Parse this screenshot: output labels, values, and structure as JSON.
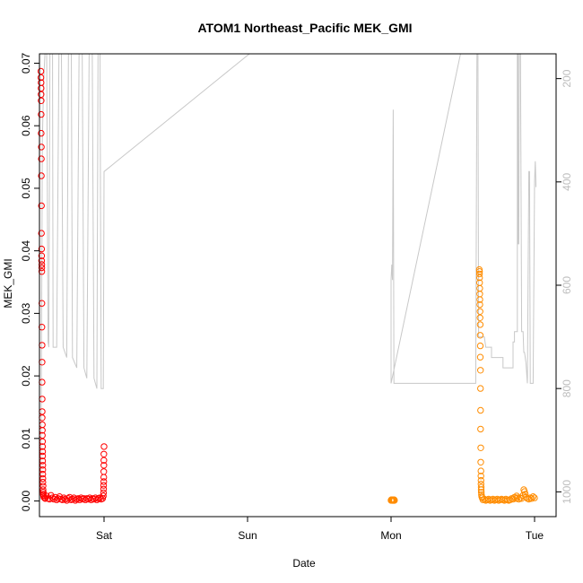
{
  "chart_data": {
    "type": "scatter",
    "title": "ATOM1 Northeast_Pacific MEK_GMI",
    "xlabel": "Date",
    "ylabel": "MEK_GMI",
    "x_ticks": [
      "Sat",
      "Sun",
      "Mon",
      "Tue"
    ],
    "x_tick_days": [
      1,
      2,
      3,
      4
    ],
    "xlim": [
      0.55,
      4.15
    ],
    "ylim": [
      -0.0025,
      0.0715
    ],
    "y_ticks": [
      "0.00",
      "0.01",
      "0.02",
      "0.03",
      "0.04",
      "0.05",
      "0.06",
      "0.07"
    ],
    "y_tick_values": [
      0,
      0.01,
      0.02,
      0.03,
      0.04,
      0.05,
      0.06,
      0.07
    ],
    "y2_ticks": [
      "200",
      "400",
      "600",
      "800",
      "1000"
    ],
    "y2_tick_values": [
      200,
      400,
      600,
      800,
      1000
    ],
    "y2lim": [
      1048,
      152
    ],
    "y2_reversed": true,
    "grid": false,
    "colors": {
      "series1": "#ff0000",
      "series2": "#ff8c00",
      "pressure": "#c8c8c8"
    },
    "series": [
      {
        "color": "#ff0000",
        "marker": "open-circle",
        "points": [
          [
            0.56,
            0.0687
          ],
          [
            0.56,
            0.0677
          ],
          [
            0.561,
            0.0669
          ],
          [
            0.561,
            0.066
          ],
          [
            0.561,
            0.065
          ],
          [
            0.562,
            0.064
          ],
          [
            0.562,
            0.0618
          ],
          [
            0.562,
            0.0588
          ],
          [
            0.563,
            0.0566
          ],
          [
            0.563,
            0.0547
          ],
          [
            0.563,
            0.052
          ],
          [
            0.564,
            0.0472
          ],
          [
            0.564,
            0.0428
          ],
          [
            0.565,
            0.0403
          ],
          [
            0.565,
            0.0392
          ],
          [
            0.565,
            0.0384
          ],
          [
            0.566,
            0.0378
          ],
          [
            0.566,
            0.0373
          ],
          [
            0.566,
            0.0367
          ],
          [
            0.567,
            0.0316
          ],
          [
            0.567,
            0.0278
          ],
          [
            0.568,
            0.0249
          ],
          [
            0.568,
            0.0222
          ],
          [
            0.568,
            0.019
          ],
          [
            0.569,
            0.0163
          ],
          [
            0.569,
            0.0143
          ],
          [
            0.569,
            0.0133
          ],
          [
            0.57,
            0.0122
          ],
          [
            0.57,
            0.0113
          ],
          [
            0.57,
            0.0105
          ],
          [
            0.571,
            0.0095
          ],
          [
            0.571,
            0.0087
          ],
          [
            0.572,
            0.0079
          ],
          [
            0.572,
            0.0072
          ],
          [
            0.572,
            0.0064
          ],
          [
            0.573,
            0.0057
          ],
          [
            0.573,
            0.005
          ],
          [
            0.573,
            0.0043
          ],
          [
            0.574,
            0.0036
          ],
          [
            0.574,
            0.003
          ],
          [
            0.575,
            0.0024
          ],
          [
            0.575,
            0.0018
          ],
          [
            0.576,
            0.0014
          ],
          [
            0.577,
            0.0011
          ],
          [
            0.578,
            0.0009
          ],
          [
            0.58,
            0.0007
          ],
          [
            0.585,
            0.0005
          ],
          [
            0.59,
            0.0004
          ],
          [
            0.6,
            0.0008
          ],
          [
            0.61,
            0.0004
          ],
          [
            0.62,
            0.0003
          ],
          [
            0.63,
            0.0009
          ],
          [
            0.64,
            0.0005
          ],
          [
            0.65,
            0.0003
          ],
          [
            0.66,
            0.0006
          ],
          [
            0.67,
            0.0002
          ],
          [
            0.68,
            0.0004
          ],
          [
            0.69,
            0.0007
          ],
          [
            0.7,
            0.0003
          ],
          [
            0.71,
            0.0002
          ],
          [
            0.72,
            0.0005
          ],
          [
            0.73,
            0.0003
          ],
          [
            0.74,
            0.0001
          ],
          [
            0.75,
            0.0004
          ],
          [
            0.76,
            0.0006
          ],
          [
            0.77,
            0.0002
          ],
          [
            0.78,
            0.0003
          ],
          [
            0.79,
            0.0005
          ],
          [
            0.8,
            0.0001
          ],
          [
            0.81,
            0.0003
          ],
          [
            0.82,
            0.0004
          ],
          [
            0.83,
            0.0002
          ],
          [
            0.84,
            0.0005
          ],
          [
            0.85,
            0.0003
          ],
          [
            0.86,
            0.0004
          ],
          [
            0.87,
            0.0002
          ],
          [
            0.88,
            0.0004
          ],
          [
            0.89,
            0.0003
          ],
          [
            0.9,
            0.0005
          ],
          [
            0.91,
            0.0002
          ],
          [
            0.92,
            0.0004
          ],
          [
            0.93,
            0.0003
          ],
          [
            0.94,
            0.0005
          ],
          [
            0.95,
            0.0002
          ],
          [
            0.96,
            0.0004
          ],
          [
            0.97,
            0.0005
          ],
          [
            0.98,
            0.0003
          ],
          [
            0.99,
            0.0004
          ],
          [
            0.995,
            0.0008
          ],
          [
            0.996,
            0.0013
          ],
          [
            0.997,
            0.0019
          ],
          [
            0.997,
            0.0025
          ],
          [
            0.998,
            0.0031
          ],
          [
            0.998,
            0.0038
          ],
          [
            0.998,
            0.0047
          ],
          [
            0.999,
            0.0057
          ],
          [
            0.999,
            0.0065
          ],
          [
            0.999,
            0.0075
          ],
          [
            1.0,
            0.0087
          ]
        ]
      },
      {
        "color": "#ff8c00",
        "marker": "open-circle",
        "points": [
          [
            3.0,
            0.0001
          ],
          [
            3.002,
            0.0002
          ],
          [
            3.004,
            0.0002
          ],
          [
            3.006,
            0.0001
          ],
          [
            3.008,
            0.0002
          ],
          [
            3.01,
            0.0001
          ],
          [
            3.012,
            0.0002
          ],
          [
            3.014,
            0.0001
          ],
          [
            3.016,
            0.0002
          ],
          [
            3.018,
            0.0001
          ],
          [
            3.02,
            0.0001
          ],
          [
            3.022,
            0.0002
          ],
          [
            3.024,
            0.0001
          ],
          [
            3.615,
            0.037
          ],
          [
            3.616,
            0.0367
          ],
          [
            3.616,
            0.0363
          ],
          [
            3.617,
            0.0357
          ],
          [
            3.617,
            0.0349
          ],
          [
            3.618,
            0.034
          ],
          [
            3.618,
            0.0331
          ],
          [
            3.619,
            0.0322
          ],
          [
            3.619,
            0.0314
          ],
          [
            3.62,
            0.0303
          ],
          [
            3.62,
            0.0293
          ],
          [
            3.621,
            0.0282
          ],
          [
            3.621,
            0.0265
          ],
          [
            3.622,
            0.0248
          ],
          [
            3.622,
            0.023
          ],
          [
            3.623,
            0.0209
          ],
          [
            3.623,
            0.018
          ],
          [
            3.624,
            0.0145
          ],
          [
            3.624,
            0.0115
          ],
          [
            3.625,
            0.0085
          ],
          [
            3.625,
            0.0062
          ],
          [
            3.626,
            0.0048
          ],
          [
            3.626,
            0.004
          ],
          [
            3.627,
            0.0033
          ],
          [
            3.627,
            0.0027
          ],
          [
            3.628,
            0.0022
          ],
          [
            3.628,
            0.0018
          ],
          [
            3.629,
            0.0014
          ],
          [
            3.63,
            0.001
          ],
          [
            3.632,
            0.0007
          ],
          [
            3.635,
            0.0005
          ],
          [
            3.64,
            0.0002
          ],
          [
            3.65,
            0.0003
          ],
          [
            3.66,
            0.0001
          ],
          [
            3.67,
            0.0002
          ],
          [
            3.68,
            0.0003
          ],
          [
            3.69,
            0.0001
          ],
          [
            3.7,
            0.0002
          ],
          [
            3.71,
            0.0003
          ],
          [
            3.72,
            0.0001
          ],
          [
            3.73,
            0.0002
          ],
          [
            3.74,
            0.0003
          ],
          [
            3.75,
            0.0001
          ],
          [
            3.76,
            0.0002
          ],
          [
            3.77,
            0.0003
          ],
          [
            3.78,
            0.0002
          ],
          [
            3.79,
            0.0001
          ],
          [
            3.8,
            0.0003
          ],
          [
            3.81,
            0.0002
          ],
          [
            3.82,
            0.0001
          ],
          [
            3.83,
            0.0002
          ],
          [
            3.84,
            0.0004
          ],
          [
            3.85,
            0.0003
          ],
          [
            3.86,
            0.0006
          ],
          [
            3.87,
            0.0004
          ],
          [
            3.875,
            0.0008
          ],
          [
            3.88,
            0.0005
          ],
          [
            3.89,
            0.0003
          ],
          [
            3.9,
            0.0005
          ],
          [
            3.91,
            0.0004
          ],
          [
            3.92,
            0.0009
          ],
          [
            3.925,
            0.0018
          ],
          [
            3.93,
            0.0015
          ],
          [
            3.935,
            0.0011
          ],
          [
            3.94,
            0.0006
          ],
          [
            3.95,
            0.0004
          ],
          [
            3.96,
            0.0003
          ],
          [
            3.97,
            0.0005
          ],
          [
            3.98,
            0.0004
          ],
          [
            3.99,
            0.0007
          ],
          [
            4.0,
            0.0005
          ]
        ]
      }
    ],
    "pressure_line": {
      "color": "#c8c8c8",
      "points": [
        [
          0.56,
          1015
        ],
        [
          0.57,
          320
        ],
        [
          0.58,
          200
        ],
        [
          0.59,
          140
        ],
        [
          0.6,
          140
        ],
        [
          0.61,
          710
        ],
        [
          0.615,
          720
        ],
        [
          0.625,
          1
        ],
        [
          0.64,
          1
        ],
        [
          0.645,
          720
        ],
        [
          0.67,
          720
        ],
        [
          0.69,
          1
        ],
        [
          0.7,
          1
        ],
        [
          0.715,
          720
        ],
        [
          0.74,
          740
        ],
        [
          0.755,
          1
        ],
        [
          0.77,
          1
        ],
        [
          0.78,
          740
        ],
        [
          0.81,
          760
        ],
        [
          0.83,
          1
        ],
        [
          0.845,
          1
        ],
        [
          0.86,
          760
        ],
        [
          0.88,
          780
        ],
        [
          0.9,
          1
        ],
        [
          0.915,
          1
        ],
        [
          0.93,
          780
        ],
        [
          0.95,
          800
        ],
        [
          0.96,
          1
        ],
        [
          0.97,
          1
        ],
        [
          0.98,
          800
        ],
        [
          0.995,
          800
        ],
        [
          1.0,
          380
        ],
        [
          1.4,
          290
        ],
        [
          1.8,
          200
        ],
        [
          2.2,
          110
        ],
        [
          2.6,
          20
        ],
        [
          2.97,
          -55
        ],
        [
          3.3,
          -120
        ],
        [
          3.6,
          -150
        ],
        [
          3.6,
          -100
        ],
        [
          3.6,
          -50
        ],
        [
          3.6,
          -1
        ],
        [
          3.0,
          790
        ],
        [
          3.0,
          590
        ],
        [
          3.005,
          560
        ],
        [
          3.01,
          590
        ],
        [
          3.015,
          260
        ],
        [
          3.02,
          790
        ],
        [
          3.3,
          790
        ],
        [
          3.59,
          790
        ],
        [
          3.6,
          40
        ],
        [
          3.605,
          100
        ],
        [
          3.61,
          700
        ],
        [
          3.65,
          700
        ],
        [
          3.66,
          720
        ],
        [
          3.7,
          720
        ],
        [
          3.7,
          740
        ],
        [
          3.78,
          740
        ],
        [
          3.78,
          760
        ],
        [
          3.85,
          760
        ],
        [
          3.85,
          710
        ],
        [
          3.86,
          710
        ],
        [
          3.86,
          690
        ],
        [
          3.88,
          690
        ],
        [
          3.88,
          120
        ],
        [
          3.885,
          120
        ],
        [
          3.885,
          520
        ],
        [
          3.89,
          520
        ],
        [
          3.895,
          30
        ],
        [
          3.9,
          30
        ],
        [
          3.91,
          690
        ],
        [
          3.92,
          690
        ],
        [
          3.925,
          730
        ],
        [
          3.93,
          730
        ],
        [
          3.94,
          750
        ],
        [
          3.95,
          790
        ],
        [
          3.96,
          380
        ],
        [
          3.965,
          380
        ],
        [
          3.97,
          790
        ],
        [
          3.99,
          790
        ],
        [
          4.0,
          400
        ],
        [
          4.005,
          360
        ],
        [
          4.01,
          410
        ]
      ]
    }
  }
}
